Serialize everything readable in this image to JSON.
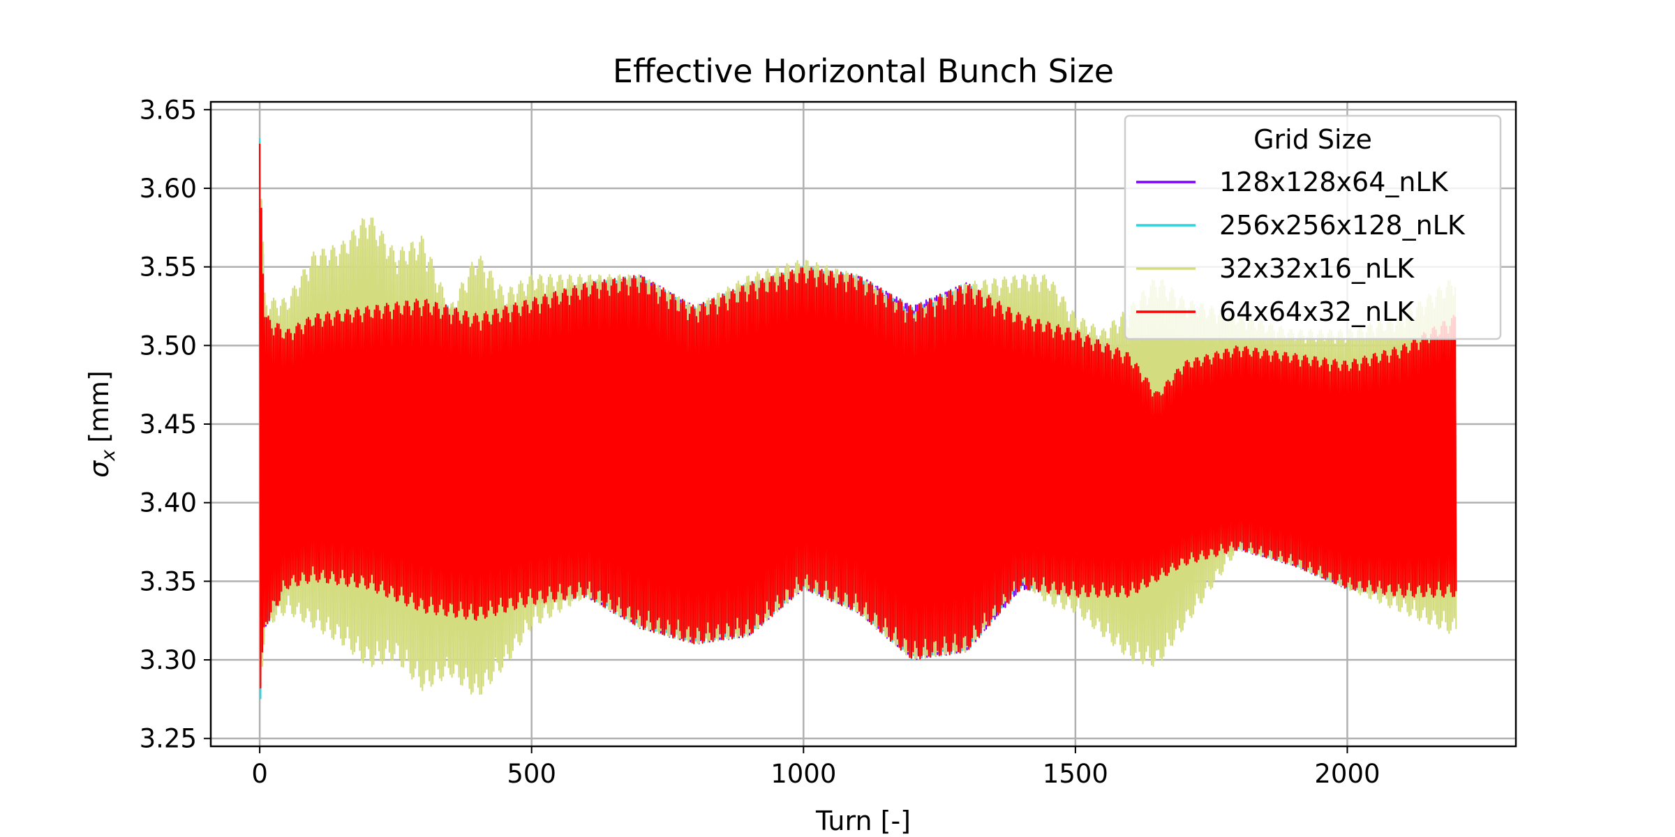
{
  "chart_data": {
    "type": "line",
    "title": "Effective Horizontal Bunch Size",
    "xlabel": "Turn [-]",
    "ylabel": "σx [mm]",
    "ylabel_symbol": "σ",
    "ylabel_sub": "x",
    "ylabel_unit": "[mm]",
    "xlim": [
      -90,
      2310
    ],
    "ylim": [
      3.245,
      3.655
    ],
    "xticks": [
      0,
      500,
      1000,
      1500,
      2000
    ],
    "yticks": [
      3.25,
      3.3,
      3.35,
      3.4,
      3.45,
      3.5,
      3.55,
      3.6,
      3.65
    ],
    "xtick_labels": [
      "0",
      "500",
      "1000",
      "1500",
      "2000"
    ],
    "ytick_labels": [
      "3.25",
      "3.30",
      "3.35",
      "3.40",
      "3.45",
      "3.50",
      "3.55",
      "3.60",
      "3.65"
    ],
    "grid": true,
    "legend": {
      "title": "Grid Size",
      "position": "top-right"
    },
    "turn_range": [
      0,
      2200
    ],
    "initial_transient": {
      "max": 3.632,
      "min": 3.265
    },
    "series": [
      {
        "name": "128x128x64_nLK",
        "color": "#7f00ff",
        "envelope": {
          "x": [
            0,
            10,
            50,
            100,
            200,
            300,
            400,
            500,
            600,
            700,
            800,
            900,
            1000,
            1100,
            1200,
            1300,
            1400,
            1500,
            1600,
            1650,
            1700,
            1800,
            1900,
            2000,
            2100,
            2200
          ],
          "upper": [
            3.63,
            3.52,
            3.51,
            3.52,
            3.525,
            3.53,
            3.52,
            3.53,
            3.54,
            3.545,
            3.525,
            3.54,
            3.55,
            3.545,
            3.525,
            3.54,
            3.52,
            3.51,
            3.495,
            3.47,
            3.49,
            3.5,
            3.495,
            3.49,
            3.5,
            3.52
          ],
          "lower": [
            3.27,
            3.32,
            3.345,
            3.35,
            3.345,
            3.33,
            3.325,
            3.335,
            3.34,
            3.32,
            3.31,
            3.315,
            3.345,
            3.33,
            3.3,
            3.305,
            3.345,
            3.34,
            3.34,
            3.35,
            3.36,
            3.37,
            3.36,
            3.345,
            3.34,
            3.34
          ]
        }
      },
      {
        "name": "256x256x128_nLK",
        "color": "#2ad4e0",
        "envelope": {
          "x": [
            0,
            10,
            50,
            100,
            200,
            300,
            400,
            500,
            600,
            700,
            800,
            900,
            1000,
            1100,
            1200,
            1300,
            1400,
            1500,
            1600,
            1650,
            1700,
            1800,
            1900,
            2000,
            2100,
            2200
          ],
          "upper": [
            3.632,
            3.52,
            3.51,
            3.52,
            3.525,
            3.53,
            3.52,
            3.53,
            3.54,
            3.545,
            3.525,
            3.54,
            3.55,
            3.545,
            3.525,
            3.54,
            3.52,
            3.51,
            3.495,
            3.47,
            3.49,
            3.5,
            3.495,
            3.49,
            3.5,
            3.52
          ],
          "lower": [
            3.265,
            3.32,
            3.345,
            3.35,
            3.345,
            3.33,
            3.325,
            3.335,
            3.34,
            3.32,
            3.31,
            3.315,
            3.345,
            3.33,
            3.3,
            3.305,
            3.345,
            3.34,
            3.34,
            3.35,
            3.36,
            3.37,
            3.36,
            3.345,
            3.34,
            3.34
          ]
        }
      },
      {
        "name": "32x32x16_nLK",
        "color": "#d4dc80",
        "envelope": {
          "x": [
            0,
            10,
            50,
            100,
            150,
            200,
            250,
            300,
            350,
            400,
            450,
            500,
            600,
            700,
            800,
            900,
            1000,
            1100,
            1200,
            1300,
            1400,
            1450,
            1500,
            1550,
            1600,
            1650,
            1700,
            1800,
            1900,
            2000,
            2100,
            2200
          ],
          "upper": [
            3.63,
            3.53,
            3.53,
            3.56,
            3.565,
            3.585,
            3.56,
            3.57,
            3.525,
            3.56,
            3.535,
            3.545,
            3.545,
            3.545,
            3.525,
            3.545,
            3.555,
            3.545,
            3.52,
            3.54,
            3.545,
            3.545,
            3.52,
            3.51,
            3.525,
            3.545,
            3.53,
            3.52,
            3.51,
            3.51,
            3.52,
            3.545
          ],
          "lower": [
            3.27,
            3.32,
            3.33,
            3.32,
            3.31,
            3.295,
            3.3,
            3.28,
            3.29,
            3.275,
            3.295,
            3.32,
            3.34,
            3.32,
            3.31,
            3.315,
            3.345,
            3.33,
            3.3,
            3.305,
            3.35,
            3.335,
            3.33,
            3.315,
            3.3,
            3.295,
            3.32,
            3.37,
            3.36,
            3.345,
            3.33,
            3.315
          ]
        }
      },
      {
        "name": "64x64x32_nLK",
        "color": "#ff0000",
        "envelope": {
          "x": [
            0,
            10,
            50,
            100,
            200,
            300,
            400,
            500,
            600,
            700,
            800,
            900,
            1000,
            1100,
            1200,
            1300,
            1400,
            1500,
            1600,
            1650,
            1700,
            1800,
            1900,
            2000,
            2100,
            2200
          ],
          "upper": [
            3.63,
            3.52,
            3.51,
            3.52,
            3.525,
            3.53,
            3.52,
            3.53,
            3.54,
            3.545,
            3.525,
            3.54,
            3.55,
            3.545,
            3.525,
            3.54,
            3.52,
            3.51,
            3.495,
            3.47,
            3.49,
            3.5,
            3.495,
            3.49,
            3.5,
            3.52
          ],
          "lower": [
            3.27,
            3.32,
            3.345,
            3.35,
            3.345,
            3.33,
            3.325,
            3.335,
            3.34,
            3.32,
            3.31,
            3.315,
            3.345,
            3.33,
            3.3,
            3.305,
            3.345,
            3.34,
            3.34,
            3.35,
            3.36,
            3.37,
            3.36,
            3.345,
            3.34,
            3.34
          ]
        }
      }
    ]
  }
}
